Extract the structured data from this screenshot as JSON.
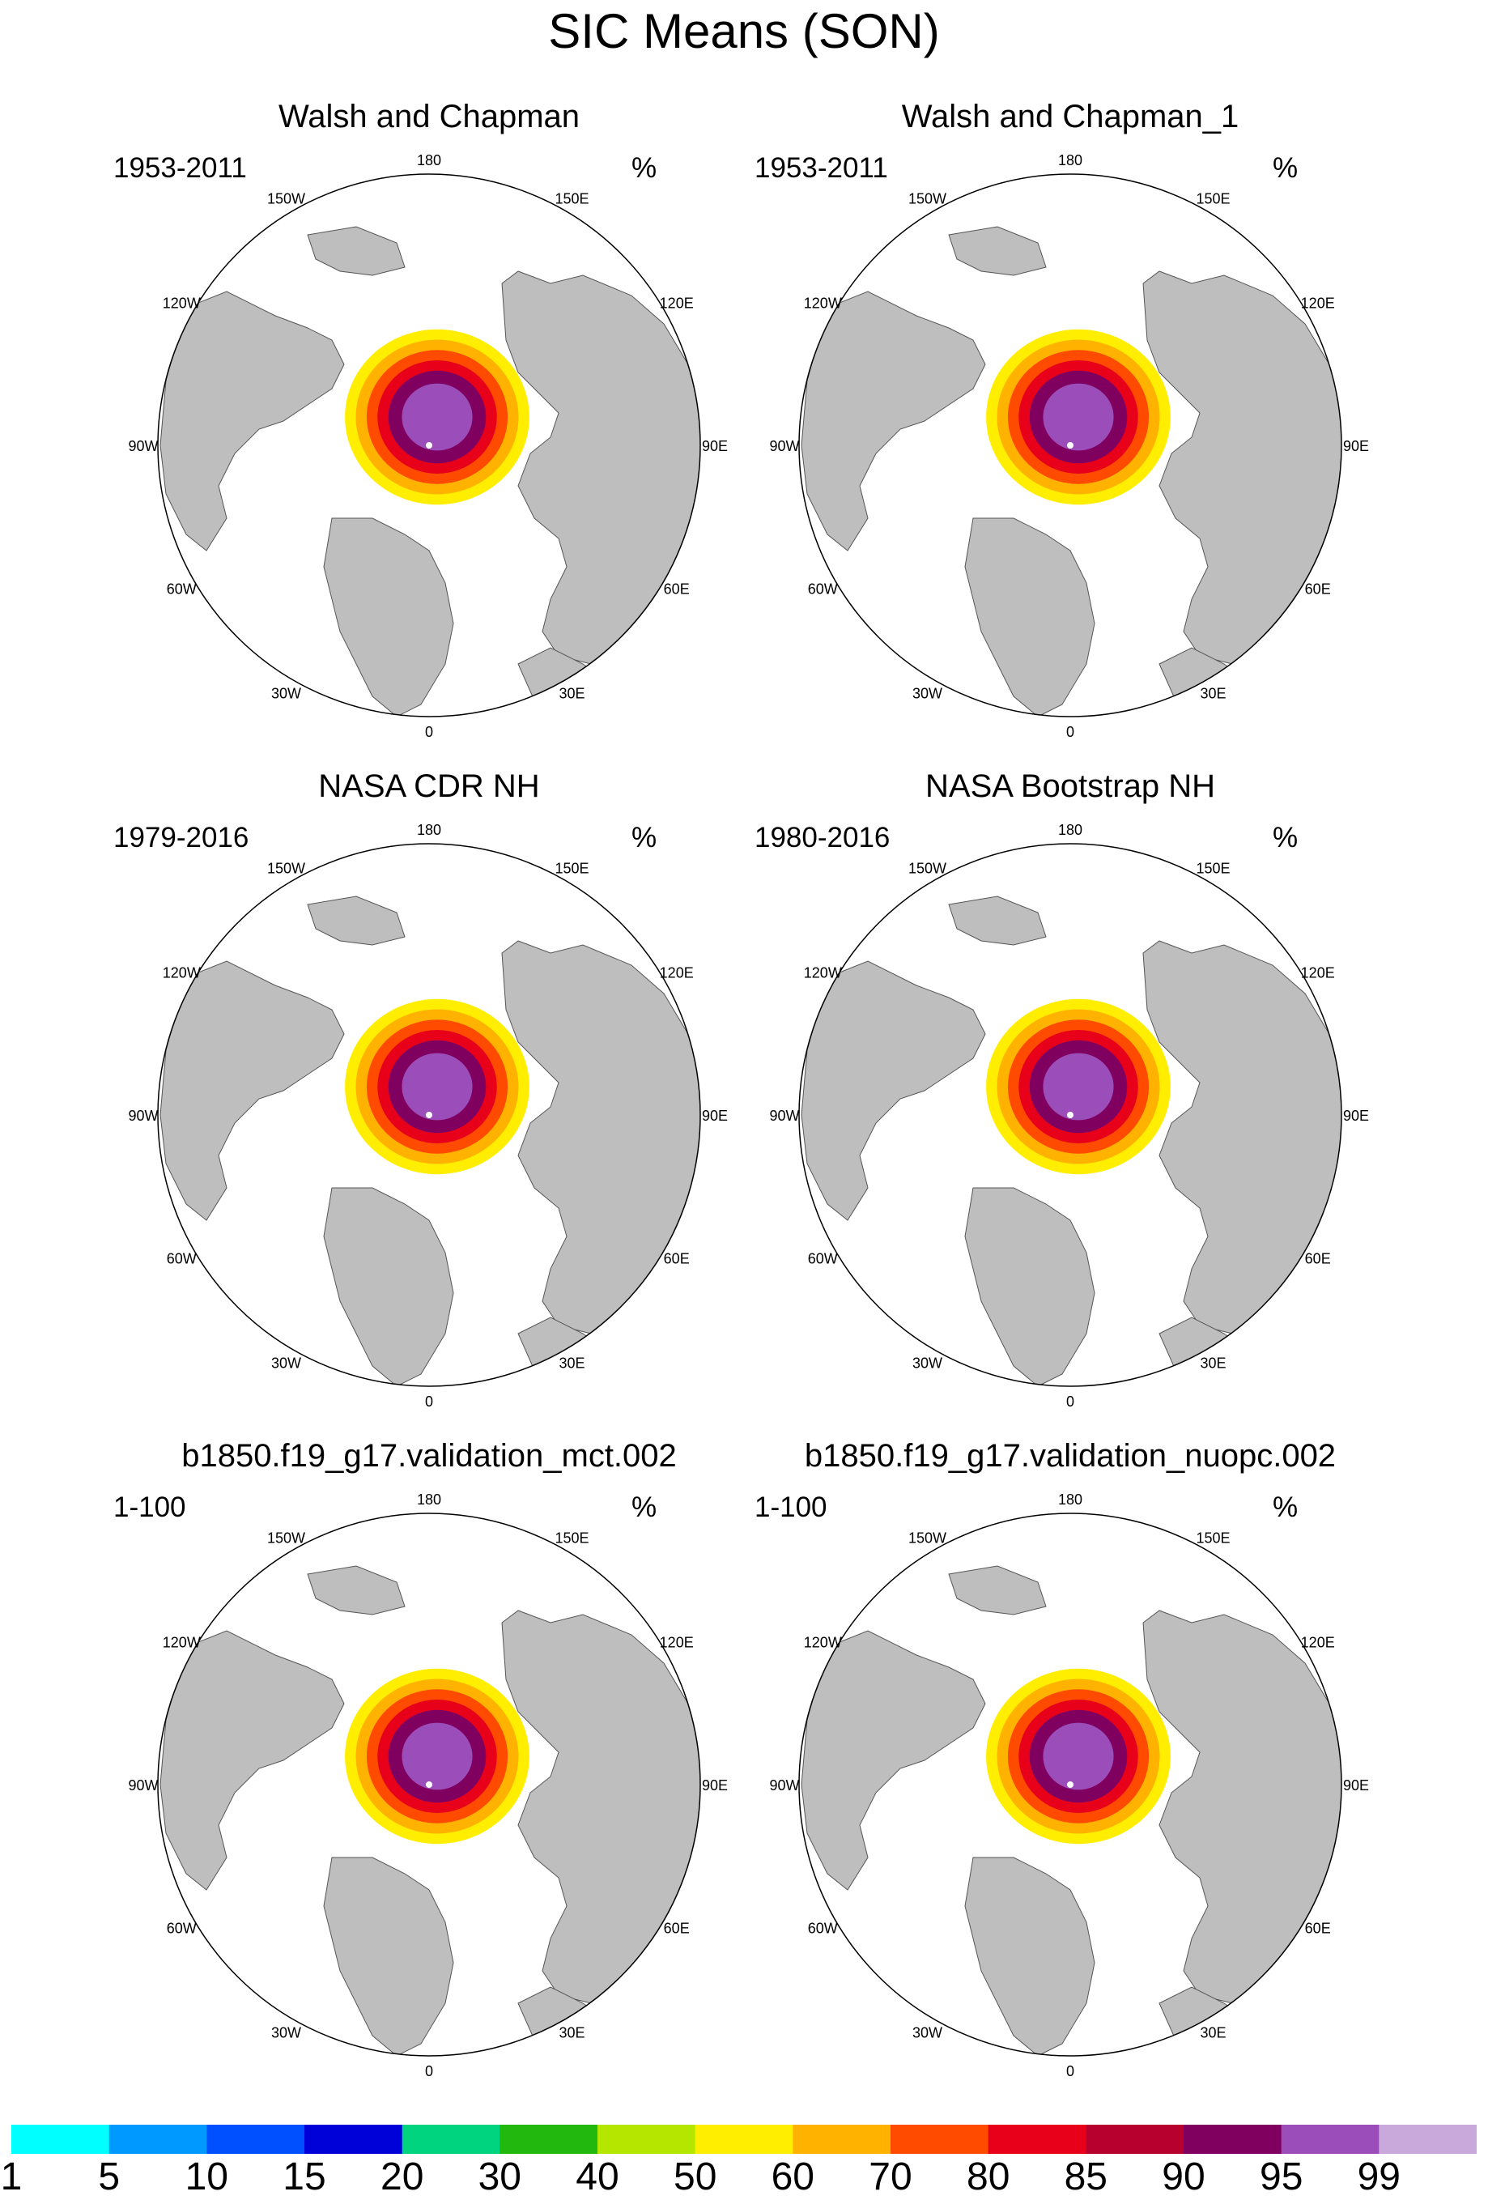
{
  "title": "SIC Means (SON)",
  "units_label": "%",
  "longitude_labels": [
    "180",
    "150E",
    "120E",
    "90E",
    "60E",
    "30E",
    "0",
    "30W",
    "60W",
    "90W",
    "120W",
    "150W"
  ],
  "colors": {
    "land": "#bebebe",
    "ocean": "#ffffff",
    "outline": "#000000",
    "pole_marker": "#ffffff"
  },
  "panels": [
    {
      "title": "Walsh and Chapman",
      "years": "1953-2011",
      "units": "%"
    },
    {
      "title": "Walsh and Chapman_1",
      "years": "1953-2011",
      "units": "%"
    },
    {
      "title": "NASA CDR NH",
      "years": "1979-2016",
      "units": "%"
    },
    {
      "title": "NASA Bootstrap NH",
      "years": "1980-2016",
      "units": "%"
    },
    {
      "title": "b1850.f19_g17.validation_mct.002",
      "years": "1-100",
      "units": "%"
    },
    {
      "title": "b1850.f19_g17.validation_nuopc.002",
      "years": "1-100",
      "units": "%"
    }
  ],
  "colorbar": {
    "labels": [
      "1",
      "5",
      "10",
      "15",
      "20",
      "30",
      "40",
      "50",
      "60",
      "70",
      "80",
      "85",
      "90",
      "95",
      "99"
    ],
    "colors": [
      "#00ffff",
      "#0099ff",
      "#0050ff",
      "#0000d8",
      "#00d47e",
      "#22b80e",
      "#b4e600",
      "#ffee00",
      "#ffb300",
      "#ff4b00",
      "#e8001a",
      "#b8002e",
      "#800060",
      "#9b4dba",
      "#c9a8dc"
    ]
  }
}
